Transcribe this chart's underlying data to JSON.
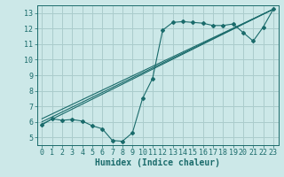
{
  "xlabel": "Humidex (Indice chaleur)",
  "ylabel": "",
  "bg_color": "#cce8e8",
  "grid_color": "#aacccc",
  "line_color": "#1a6b6b",
  "xlim": [
    -0.5,
    23.5
  ],
  "ylim": [
    4.5,
    13.5
  ],
  "xticks": [
    0,
    1,
    2,
    3,
    4,
    5,
    6,
    7,
    8,
    9,
    10,
    11,
    12,
    13,
    14,
    15,
    16,
    17,
    18,
    19,
    20,
    21,
    22,
    23
  ],
  "yticks": [
    5,
    6,
    7,
    8,
    9,
    10,
    11,
    12,
    13
  ],
  "series1_x": [
    0,
    1,
    2,
    3,
    4,
    5,
    6,
    7,
    8,
    9,
    10,
    11,
    12,
    13,
    14,
    15,
    16,
    17,
    18,
    19,
    20,
    21,
    22,
    23
  ],
  "series1_y": [
    5.8,
    6.2,
    6.1,
    6.15,
    6.05,
    5.75,
    5.55,
    4.8,
    4.75,
    5.3,
    7.5,
    8.8,
    11.9,
    12.4,
    12.45,
    12.4,
    12.35,
    12.2,
    12.2,
    12.3,
    11.75,
    11.2,
    12.1,
    13.25
  ],
  "series2_x": [
    0,
    23
  ],
  "series2_y": [
    5.85,
    13.25
  ],
  "series3_x": [
    0,
    23
  ],
  "series3_y": [
    6.0,
    13.25
  ],
  "series4_x": [
    0,
    23
  ],
  "series4_y": [
    6.2,
    13.25
  ],
  "xlabel_fontsize": 7,
  "tick_fontsize": 6
}
